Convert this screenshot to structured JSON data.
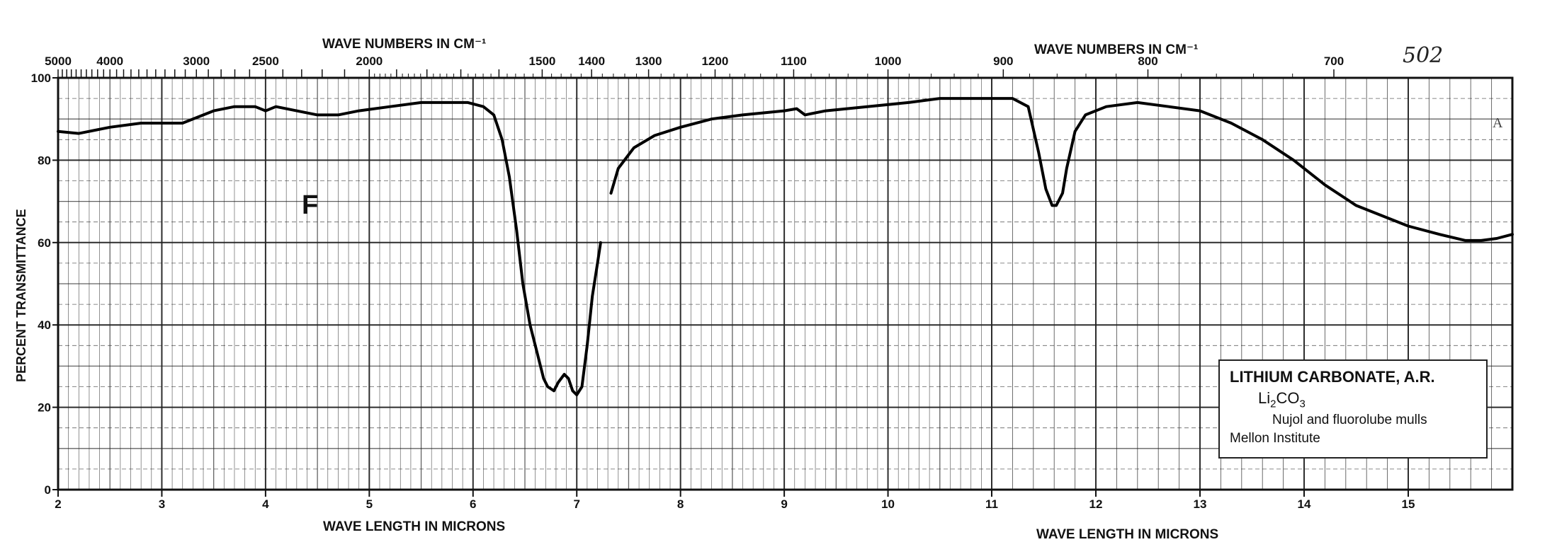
{
  "chart_data": {
    "type": "line",
    "title": "",
    "top_axis_label_left": "WAVE NUMBERS IN CM⁻¹",
    "top_axis_label_right": "WAVE NUMBERS IN CM⁻¹",
    "bottom_axis_label": "WAVE LENGTH IN MICRONS",
    "ylabel": "PERCENT TRANSMITTANCE",
    "xlim": [
      2,
      16
    ],
    "ylim": [
      0,
      100
    ],
    "grid": true,
    "y_ticks": [
      0,
      20,
      40,
      60,
      80,
      100
    ],
    "x_ticks": [
      2,
      3,
      4,
      5,
      6,
      7,
      8,
      9,
      10,
      11,
      12,
      13,
      14,
      15
    ],
    "wavenumber_ticks": [
      {
        "label": "5000",
        "um": 2.0
      },
      {
        "label": "4000",
        "um": 2.5
      },
      {
        "label": "3000",
        "um": 3.333
      },
      {
        "label": "2500",
        "um": 4.0
      },
      {
        "label": "2000",
        "um": 5.0
      },
      {
        "label": "1500",
        "um": 6.667
      },
      {
        "label": "1400",
        "um": 7.143
      },
      {
        "label": "1300",
        "um": 7.692
      },
      {
        "label": "1200",
        "um": 8.333
      },
      {
        "label": "1100",
        "um": 9.091
      },
      {
        "label": "1000",
        "um": 10.0
      },
      {
        "label": "900",
        "um": 11.111
      },
      {
        "label": "800",
        "um": 12.5
      },
      {
        "label": "700",
        "um": 14.286
      }
    ],
    "series": [
      {
        "segments": [
          [
            [
              2.0,
              87
            ],
            [
              2.2,
              86.5
            ],
            [
              2.5,
              88
            ],
            [
              2.8,
              89
            ],
            [
              3.2,
              89
            ],
            [
              3.5,
              92
            ],
            [
              3.7,
              93
            ],
            [
              3.9,
              93
            ],
            [
              4.0,
              92
            ],
            [
              4.1,
              93
            ],
            [
              4.3,
              92
            ],
            [
              4.5,
              91
            ],
            [
              4.7,
              91
            ],
            [
              4.9,
              92
            ],
            [
              5.2,
              93
            ],
            [
              5.5,
              94
            ],
            [
              5.8,
              94
            ],
            [
              5.95,
              94
            ],
            [
              6.1,
              93
            ],
            [
              6.2,
              91
            ],
            [
              6.28,
              85
            ],
            [
              6.35,
              76
            ],
            [
              6.42,
              63
            ],
            [
              6.48,
              50
            ],
            [
              6.55,
              40
            ],
            [
              6.62,
              33
            ],
            [
              6.68,
              27
            ],
            [
              6.72,
              25
            ],
            [
              6.78,
              24
            ],
            [
              6.82,
              26
            ],
            [
              6.88,
              28
            ],
            [
              6.92,
              27
            ],
            [
              6.96,
              24
            ],
            [
              7.0,
              23
            ],
            [
              7.05,
              25
            ],
            [
              7.1,
              35
            ],
            [
              7.15,
              47
            ],
            [
              7.2,
              55
            ],
            [
              7.23,
              60
            ]
          ],
          [
            [
              7.33,
              72
            ],
            [
              7.4,
              78
            ],
            [
              7.55,
              83
            ],
            [
              7.75,
              86
            ],
            [
              8.0,
              88
            ],
            [
              8.3,
              90
            ],
            [
              8.6,
              91
            ],
            [
              9.0,
              92
            ],
            [
              9.12,
              92.5
            ],
            [
              9.2,
              91
            ],
            [
              9.4,
              92
            ],
            [
              9.8,
              93
            ],
            [
              10.2,
              94
            ],
            [
              10.5,
              95
            ],
            [
              10.8,
              95
            ],
            [
              11.2,
              95
            ],
            [
              11.35,
              93
            ],
            [
              11.45,
              82
            ],
            [
              11.52,
              73
            ],
            [
              11.58,
              69
            ],
            [
              11.62,
              69
            ],
            [
              11.68,
              72
            ],
            [
              11.72,
              78
            ],
            [
              11.8,
              87
            ],
            [
              11.9,
              91
            ],
            [
              12.1,
              93
            ],
            [
              12.4,
              94
            ],
            [
              12.7,
              93
            ],
            [
              13.0,
              92
            ],
            [
              13.3,
              89
            ],
            [
              13.6,
              85
            ],
            [
              13.9,
              80
            ],
            [
              14.2,
              74
            ],
            [
              14.5,
              69
            ],
            [
              14.8,
              66
            ],
            [
              15.0,
              64
            ],
            [
              15.3,
              62
            ],
            [
              15.55,
              60.5
            ],
            [
              15.7,
              60.5
            ],
            [
              15.85,
              61
            ],
            [
              16.0,
              62
            ]
          ]
        ]
      }
    ]
  },
  "annotations": {
    "panel_letter": "F",
    "page_number": "502",
    "corner_letter": "A",
    "sample_name": "LITHIUM CARBONATE, A.R.",
    "formula_a": "Li",
    "formula_sub2": "2",
    "formula_b": "CO",
    "formula_sub3": "3",
    "method": "Nujol and fluorolube mulls",
    "source": "Mellon Institute"
  },
  "colors": {
    "grid": "#222222",
    "curve": "#000000",
    "paper": "#ffffff"
  }
}
